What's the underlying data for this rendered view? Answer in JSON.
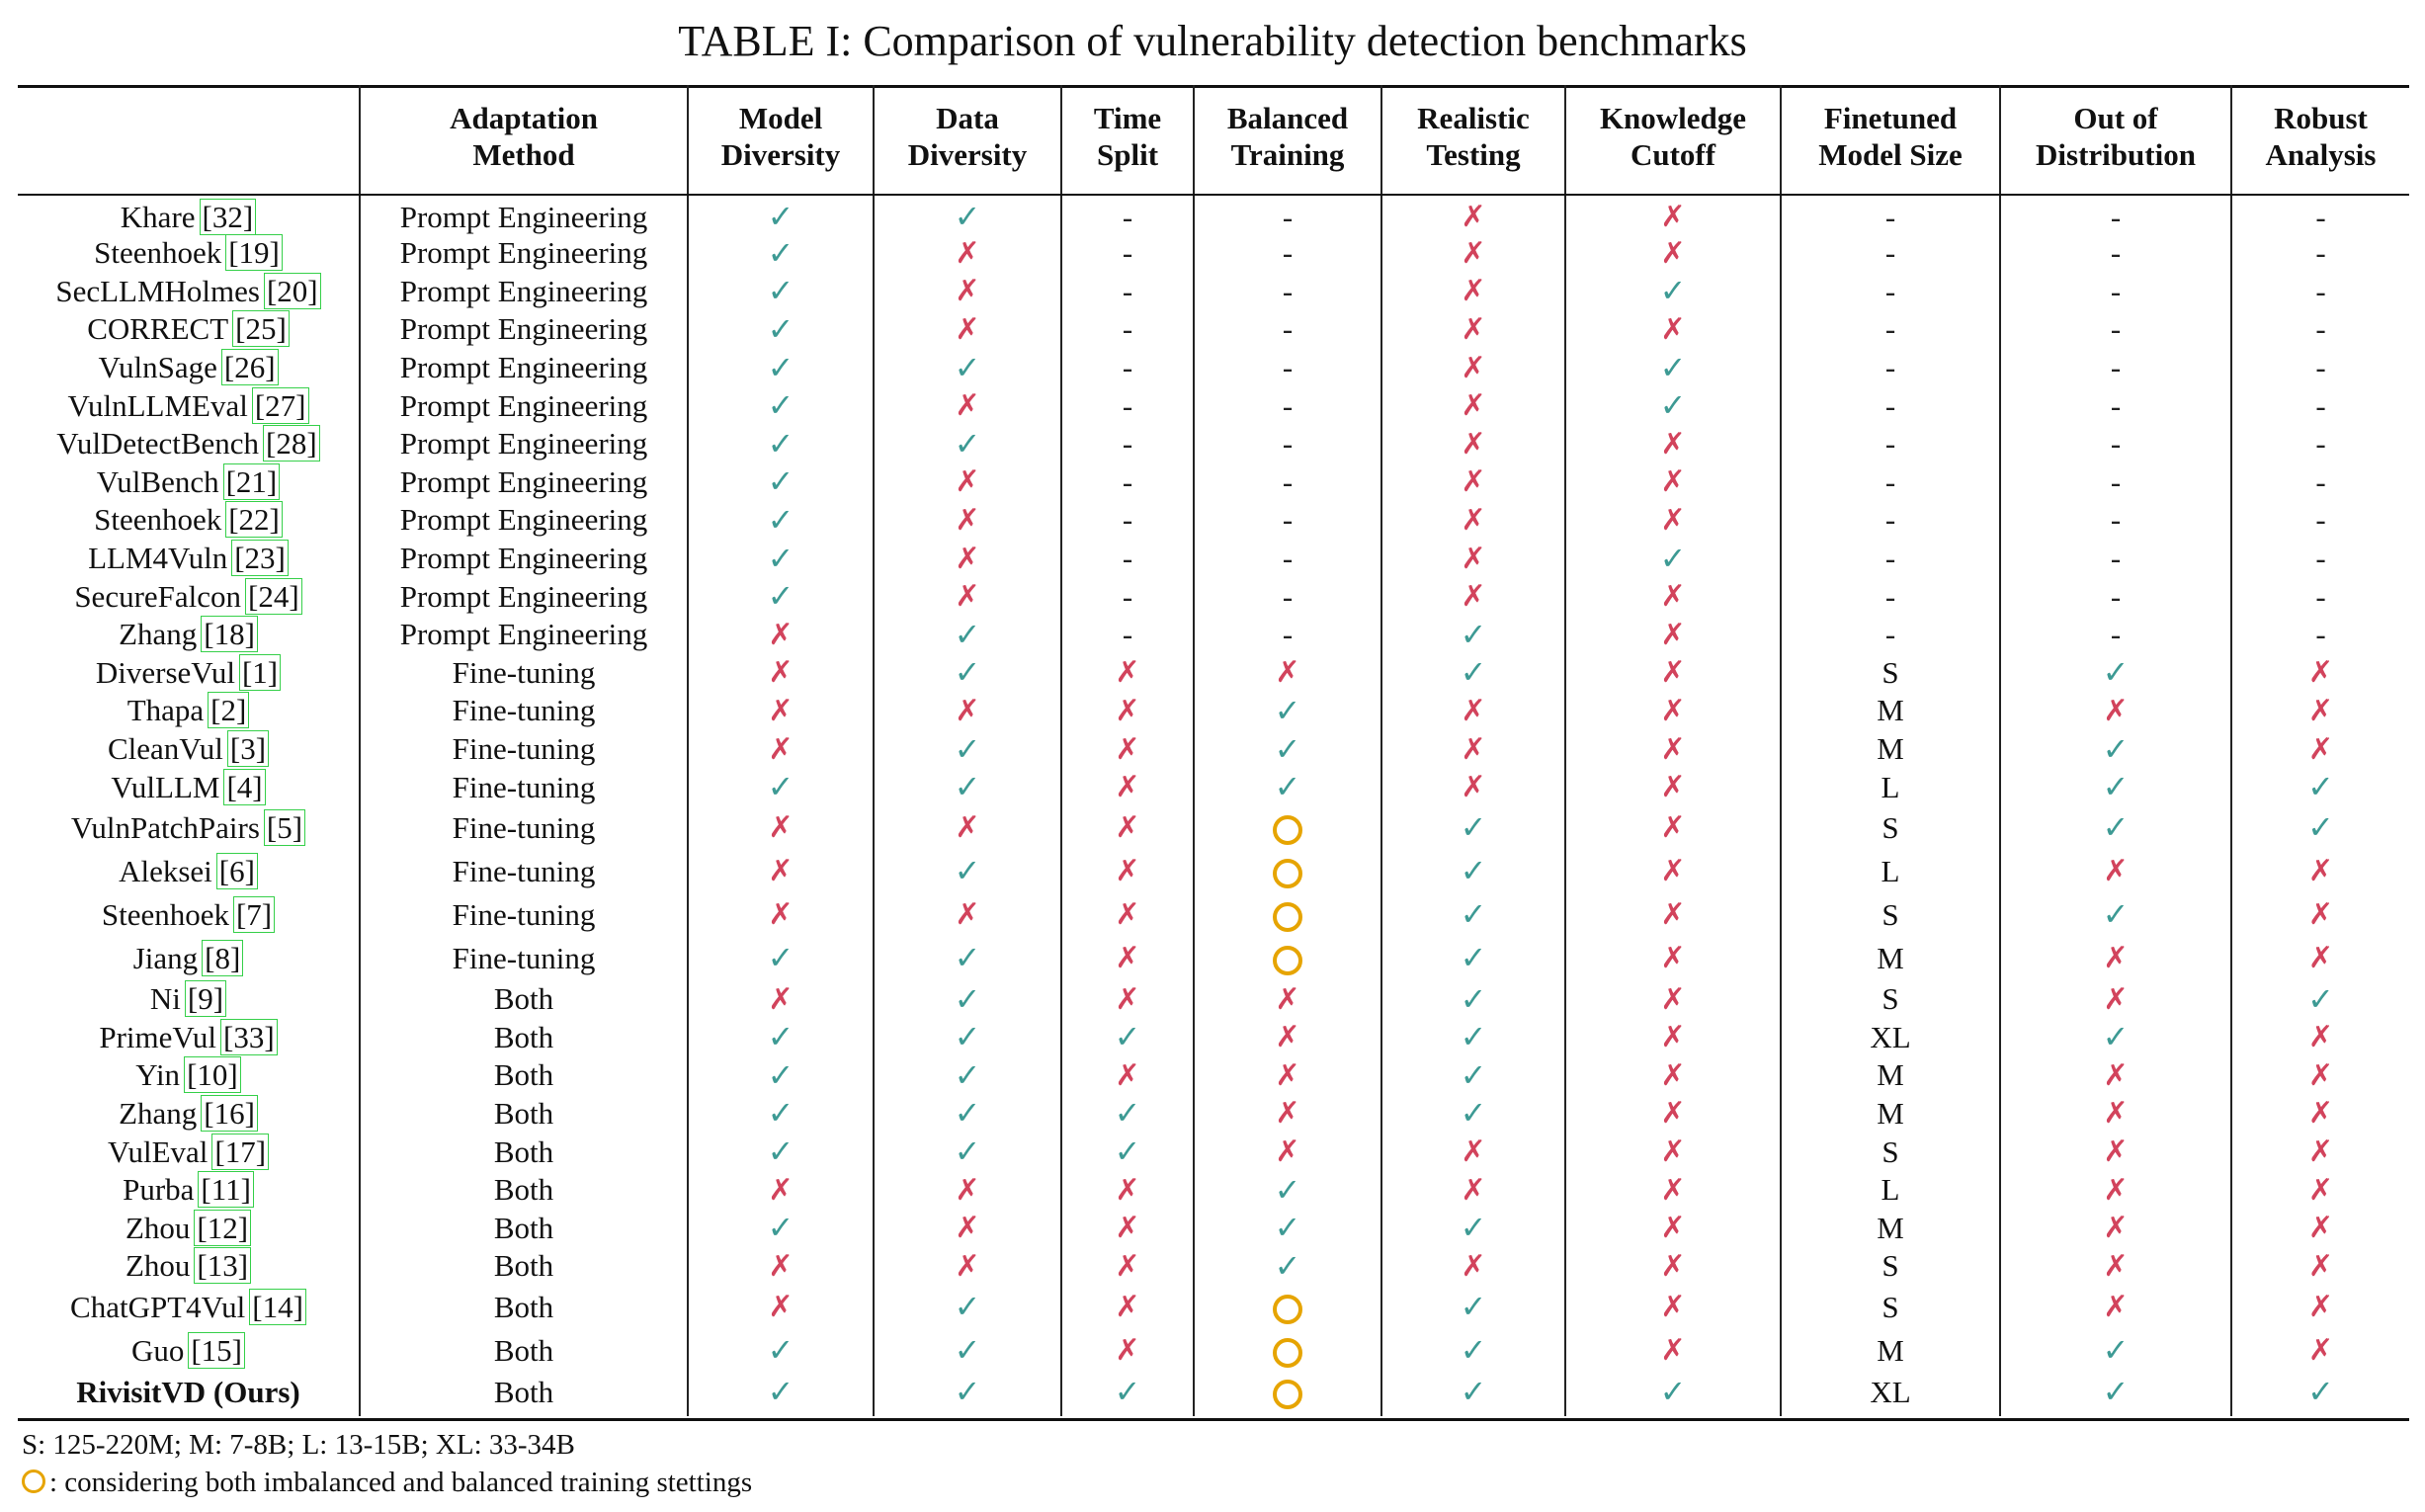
{
  "caption": "TABLE I: Comparison of vulnerability detection benchmarks",
  "headers": [
    {
      "line1": "",
      "line2": ""
    },
    {
      "line1": "Adaptation",
      "line2": "Method"
    },
    {
      "line1": "Model",
      "line2": "Diversity"
    },
    {
      "line1": "Data",
      "line2": "Diversity"
    },
    {
      "line1": "Time",
      "line2": "Split"
    },
    {
      "line1": "Balanced",
      "line2": "Training"
    },
    {
      "line1": "Realistic",
      "line2": "Testing"
    },
    {
      "line1": "Knowledge",
      "line2": "Cutoff"
    },
    {
      "line1": "Finetuned",
      "line2": "Model Size"
    },
    {
      "line1": "Out of",
      "line2": "Distribution"
    },
    {
      "line1": "Robust",
      "line2": "Analysis"
    }
  ],
  "symbols": {
    "check": "✓",
    "cross": "✗",
    "dash": "-",
    "circle": "circle-icon"
  },
  "rows": [
    {
      "name": "Khare",
      "ref": "[32]",
      "method": "Prompt Engineering",
      "cells": [
        "check",
        "check",
        "dash",
        "dash",
        "cross",
        "cross",
        "dash",
        "dash",
        "dash"
      ]
    },
    {
      "name": "Steenhoek",
      "ref": "[19]",
      "method": "Prompt Engineering",
      "cells": [
        "check",
        "cross",
        "dash",
        "dash",
        "cross",
        "cross",
        "dash",
        "dash",
        "dash"
      ]
    },
    {
      "name": "SecLLMHolmes",
      "ref": "[20]",
      "method": "Prompt Engineering",
      "cells": [
        "check",
        "cross",
        "dash",
        "dash",
        "cross",
        "check",
        "dash",
        "dash",
        "dash"
      ]
    },
    {
      "name": "CORRECT",
      "ref": "[25]",
      "method": "Prompt Engineering",
      "cells": [
        "check",
        "cross",
        "dash",
        "dash",
        "cross",
        "cross",
        "dash",
        "dash",
        "dash"
      ]
    },
    {
      "name": "VulnSage",
      "ref": "[26]",
      "method": "Prompt Engineering",
      "cells": [
        "check",
        "check",
        "dash",
        "dash",
        "cross",
        "check",
        "dash",
        "dash",
        "dash"
      ]
    },
    {
      "name": "VulnLLMEval",
      "ref": "[27]",
      "method": "Prompt Engineering",
      "cells": [
        "check",
        "cross",
        "dash",
        "dash",
        "cross",
        "check",
        "dash",
        "dash",
        "dash"
      ]
    },
    {
      "name": "VulDetectBench",
      "ref": "[28]",
      "method": "Prompt Engineering",
      "cells": [
        "check",
        "check",
        "dash",
        "dash",
        "cross",
        "cross",
        "dash",
        "dash",
        "dash"
      ]
    },
    {
      "name": "VulBench",
      "ref": "[21]",
      "method": "Prompt Engineering",
      "cells": [
        "check",
        "cross",
        "dash",
        "dash",
        "cross",
        "cross",
        "dash",
        "dash",
        "dash"
      ]
    },
    {
      "name": "Steenhoek",
      "ref": "[22]",
      "method": "Prompt Engineering",
      "cells": [
        "check",
        "cross",
        "dash",
        "dash",
        "cross",
        "cross",
        "dash",
        "dash",
        "dash"
      ]
    },
    {
      "name": "LLM4Vuln",
      "ref": "[23]",
      "method": "Prompt Engineering",
      "cells": [
        "check",
        "cross",
        "dash",
        "dash",
        "cross",
        "check",
        "dash",
        "dash",
        "dash"
      ]
    },
    {
      "name": "SecureFalcon",
      "ref": "[24]",
      "method": "Prompt Engineering",
      "cells": [
        "check",
        "cross",
        "dash",
        "dash",
        "cross",
        "cross",
        "dash",
        "dash",
        "dash"
      ]
    },
    {
      "name": "Zhang",
      "ref": "[18]",
      "method": "Prompt Engineering",
      "cells": [
        "cross",
        "check",
        "dash",
        "dash",
        "check",
        "cross",
        "dash",
        "dash",
        "dash"
      ]
    },
    {
      "name": "DiverseVul",
      "ref": "[1]",
      "method": "Fine-tuning",
      "cells": [
        "cross",
        "check",
        "cross",
        "cross",
        "check",
        "cross",
        "S",
        "check",
        "cross"
      ]
    },
    {
      "name": "Thapa",
      "ref": "[2]",
      "method": "Fine-tuning",
      "cells": [
        "cross",
        "cross",
        "cross",
        "check",
        "cross",
        "cross",
        "M",
        "cross",
        "cross"
      ]
    },
    {
      "name": "CleanVul",
      "ref": "[3]",
      "method": "Fine-tuning",
      "cells": [
        "cross",
        "check",
        "cross",
        "check",
        "cross",
        "cross",
        "M",
        "check",
        "cross"
      ]
    },
    {
      "name": "VulLLM",
      "ref": "[4]",
      "method": "Fine-tuning",
      "cells": [
        "check",
        "check",
        "cross",
        "check",
        "cross",
        "cross",
        "L",
        "check",
        "check"
      ]
    },
    {
      "name": "VulnPatchPairs",
      "ref": "[5]",
      "method": "Fine-tuning",
      "cells": [
        "cross",
        "cross",
        "cross",
        "circle",
        "check",
        "cross",
        "S",
        "check",
        "check"
      ]
    },
    {
      "name": "Aleksei",
      "ref": "[6]",
      "method": "Fine-tuning",
      "cells": [
        "cross",
        "check",
        "cross",
        "circle",
        "check",
        "cross",
        "L",
        "cross",
        "cross"
      ]
    },
    {
      "name": "Steenhoek",
      "ref": "[7]",
      "method": "Fine-tuning",
      "cells": [
        "cross",
        "cross",
        "cross",
        "circle",
        "check",
        "cross",
        "S",
        "check",
        "cross"
      ]
    },
    {
      "name": "Jiang",
      "ref": "[8]",
      "method": "Fine-tuning",
      "cells": [
        "check",
        "check",
        "cross",
        "circle",
        "check",
        "cross",
        "M",
        "cross",
        "cross"
      ]
    },
    {
      "name": "Ni",
      "ref": "[9]",
      "method": "Both",
      "cells": [
        "cross",
        "check",
        "cross",
        "cross",
        "check",
        "cross",
        "S",
        "cross",
        "check"
      ]
    },
    {
      "name": "PrimeVul",
      "ref": "[33]",
      "method": "Both",
      "cells": [
        "check",
        "check",
        "check",
        "cross",
        "check",
        "cross",
        "XL",
        "check",
        "cross"
      ]
    },
    {
      "name": "Yin",
      "ref": "[10]",
      "method": "Both",
      "cells": [
        "check",
        "check",
        "cross",
        "cross",
        "check",
        "cross",
        "M",
        "cross",
        "cross"
      ]
    },
    {
      "name": "Zhang",
      "ref": "[16]",
      "method": "Both",
      "cells": [
        "check",
        "check",
        "check",
        "cross",
        "check",
        "cross",
        "M",
        "cross",
        "cross"
      ]
    },
    {
      "name": "VulEval",
      "ref": "[17]",
      "method": "Both",
      "cells": [
        "check",
        "check",
        "check",
        "cross",
        "cross",
        "cross",
        "S",
        "cross",
        "cross"
      ]
    },
    {
      "name": "Purba",
      "ref": "[11]",
      "method": "Both",
      "cells": [
        "cross",
        "cross",
        "cross",
        "check",
        "cross",
        "cross",
        "L",
        "cross",
        "cross"
      ]
    },
    {
      "name": "Zhou",
      "ref": "[12]",
      "method": "Both",
      "cells": [
        "check",
        "cross",
        "cross",
        "check",
        "check",
        "cross",
        "M",
        "cross",
        "cross"
      ]
    },
    {
      "name": "Zhou",
      "ref": "[13]",
      "method": "Both",
      "cells": [
        "cross",
        "cross",
        "cross",
        "check",
        "cross",
        "cross",
        "S",
        "cross",
        "cross"
      ]
    },
    {
      "name": "ChatGPT4Vul",
      "ref": "[14]",
      "method": "Both",
      "cells": [
        "cross",
        "check",
        "cross",
        "circle",
        "check",
        "cross",
        "S",
        "cross",
        "cross"
      ]
    },
    {
      "name": "Guo",
      "ref": "[15]",
      "method": "Both",
      "cells": [
        "check",
        "check",
        "cross",
        "circle",
        "check",
        "cross",
        "M",
        "check",
        "cross"
      ]
    },
    {
      "name": "RivisitVD (Ours)",
      "ref": "",
      "method": "Both",
      "ours": true,
      "cells": [
        "check",
        "check",
        "check",
        "circle",
        "check",
        "check",
        "XL",
        "check",
        "check"
      ]
    }
  ],
  "notes": {
    "sizes": "S: 125-220M; M: 7-8B; L: 13-15B; XL: 33-34B",
    "circle": ": considering both imbalanced and balanced training stettings"
  }
}
